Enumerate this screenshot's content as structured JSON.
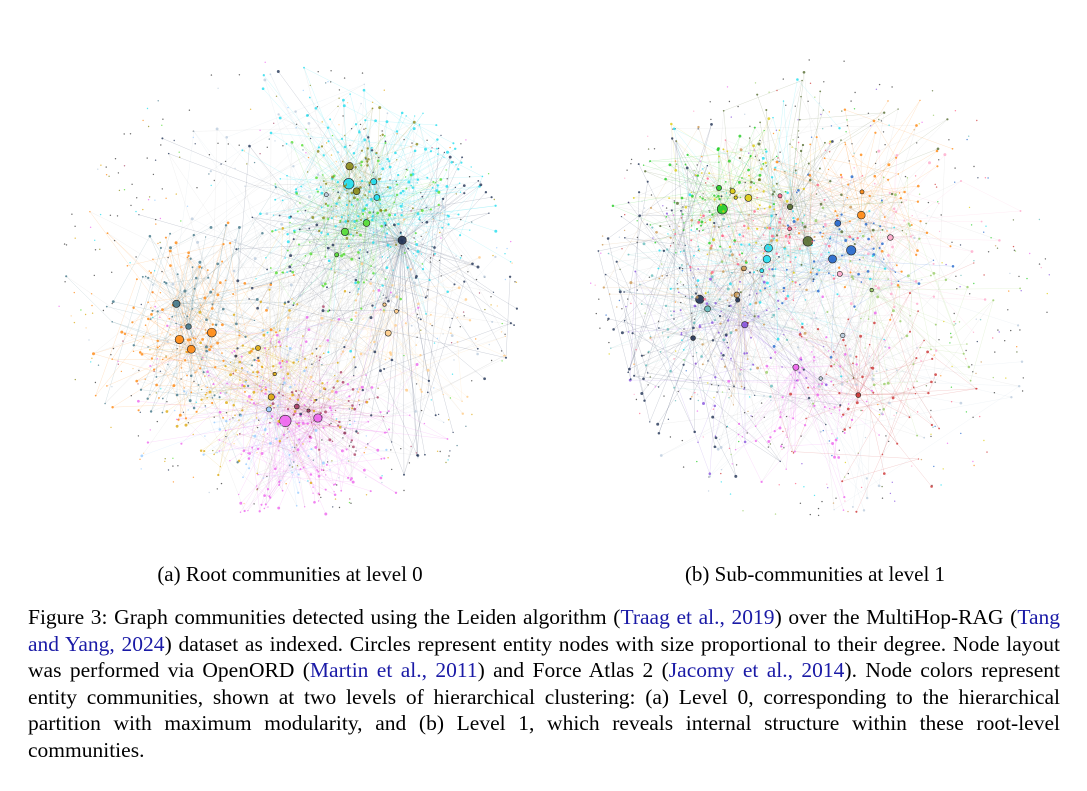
{
  "panels": {
    "a": {
      "subcaption": "(a) Root communities at level 0",
      "communities": [
        {
          "color": "#ee66ee",
          "nodes": 170,
          "spread": 0.2,
          "hub": 0.55
        },
        {
          "color": "#22ddee",
          "nodes": 190,
          "spread": 0.22,
          "hub": 0.35
        },
        {
          "color": "#ff8811",
          "nodes": 110,
          "spread": 0.16,
          "hub": 0.3
        },
        {
          "color": "#55dd33",
          "nodes": 90,
          "spread": 0.16,
          "hub": 0.25
        },
        {
          "color": "#ddaa11",
          "nodes": 90,
          "spread": 0.16,
          "hub": 0.25
        },
        {
          "color": "#223355",
          "nodes": 110,
          "spread": 0.3,
          "hub": 0.3
        },
        {
          "color": "#447788",
          "nodes": 80,
          "spread": 0.18,
          "hub": 0.2
        },
        {
          "color": "#8a8a1a",
          "nodes": 60,
          "spread": 0.1,
          "hub": 0.22
        },
        {
          "color": "#aa4466",
          "nodes": 50,
          "spread": 0.12,
          "hub": 0.22
        },
        {
          "color": "#bbccdd",
          "nodes": 80,
          "spread": 0.3,
          "hub": 0.15
        },
        {
          "color": "#ffcc88",
          "nodes": 60,
          "spread": 0.18,
          "hub": 0.15
        },
        {
          "color": "#99ccff",
          "nodes": 50,
          "spread": 0.16,
          "hub": 0.15
        }
      ]
    },
    "b": {
      "subcaption": "(b) Sub-communities at level 1",
      "communities": [
        {
          "color": "#ee66ee",
          "nodes": 70,
          "spread": 0.14,
          "hub": 0.5
        },
        {
          "color": "#22cc22",
          "nodes": 60,
          "spread": 0.12,
          "hub": 0.4
        },
        {
          "color": "#2266cc",
          "nodes": 50,
          "spread": 0.16,
          "hub": 0.35
        },
        {
          "color": "#ff8811",
          "nodes": 60,
          "spread": 0.18,
          "hub": 0.25
        },
        {
          "color": "#22ddee",
          "nodes": 70,
          "spread": 0.2,
          "hub": 0.25
        },
        {
          "color": "#ddcc11",
          "nodes": 50,
          "spread": 0.14,
          "hub": 0.25
        },
        {
          "color": "#cc3333",
          "nodes": 60,
          "spread": 0.2,
          "hub": 0.25
        },
        {
          "color": "#8855dd",
          "nodes": 60,
          "spread": 0.18,
          "hub": 0.25
        },
        {
          "color": "#556b2f",
          "nodes": 60,
          "spread": 0.22,
          "hub": 0.35
        },
        {
          "color": "#99cc66",
          "nodes": 60,
          "spread": 0.22,
          "hub": 0.2
        },
        {
          "color": "#223355",
          "nodes": 80,
          "spread": 0.3,
          "hub": 0.25
        },
        {
          "color": "#ffaacc",
          "nodes": 50,
          "spread": 0.2,
          "hub": 0.15
        },
        {
          "color": "#66bbbb",
          "nodes": 50,
          "spread": 0.2,
          "hub": 0.15
        },
        {
          "color": "#cc9955",
          "nodes": 50,
          "spread": 0.2,
          "hub": 0.15
        },
        {
          "color": "#bbccdd",
          "nodes": 60,
          "spread": 0.3,
          "hub": 0.12
        },
        {
          "color": "#ff6688",
          "nodes": 50,
          "spread": 0.18,
          "hub": 0.15
        }
      ]
    }
  },
  "caption": {
    "label": "Figure 3:",
    "s1": " Graph communities detected using the Leiden algorithm (",
    "cite1": "Traag et al., 2019",
    "s2": ") over the MultiHop-RAG (",
    "cite2": "Tang and Yang, 2024",
    "s3": ") dataset as indexed. Circles represent entity nodes with size proportional to their degree. Node layout was performed via OpenORD (",
    "cite3": "Martin et al., 2011",
    "s4": ") and Force Atlas 2 (",
    "cite4": "Jacomy et al., 2014",
    "s5": "). Node colors represent entity communities, shown at two levels of hierarchical clustering: (a) Level 0, corresponding to the hierarchical partition with maximum modularity, and (b) Level 1, which reveals internal structure within these root-level communities."
  },
  "colors": {
    "citation": "#1a1aa6",
    "text": "#000000"
  }
}
